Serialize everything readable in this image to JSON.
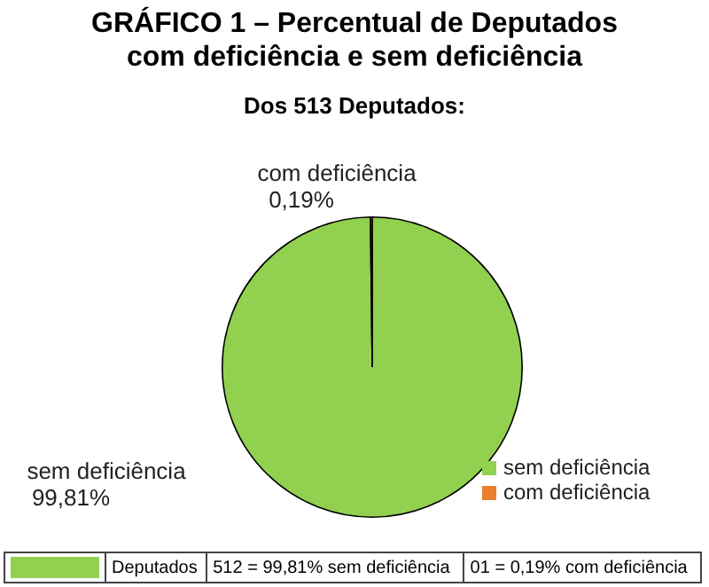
{
  "chart_data": {
    "type": "pie",
    "title": "GRÁFICO 1 – Percentual de Deputados\ncom deficiência e sem deficiência",
    "subtitle": "Dos 513 Deputados:",
    "categories": [
      "sem deficiência",
      "com deficiência"
    ],
    "values": [
      99.81,
      0.19
    ],
    "colors": [
      "#92d050",
      "#ed7d31"
    ],
    "value_labels": [
      "99,81%",
      "0,19%"
    ],
    "legend": "bottom right",
    "annotations": [
      "Deputados",
      "512 = 99,81% sem deficiência",
      "01 = 0,19% com deficiência"
    ]
  }
}
